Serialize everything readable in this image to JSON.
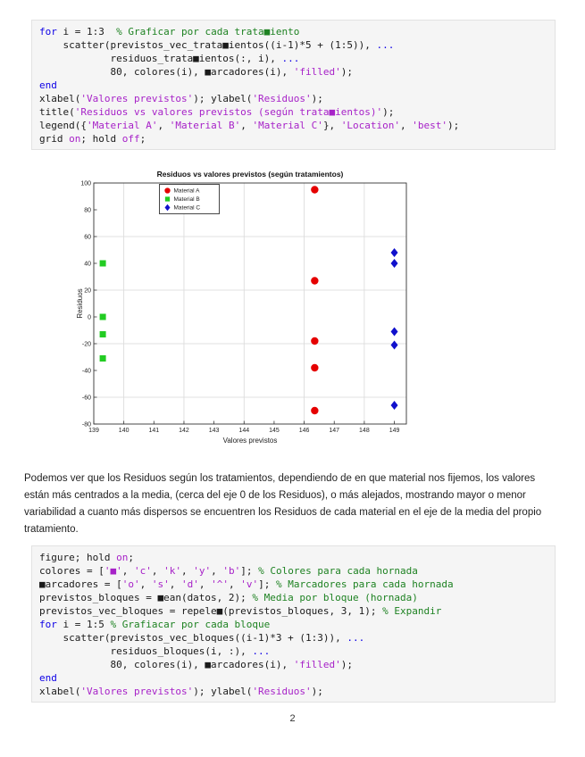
{
  "page": {
    "number": "2"
  },
  "paragraph": "Podemos ver que los Residuos según los tratamientos, dependiendo de en que material nos fijemos, los valores están más centrados a la media, (cerca del eje 0 de los Residuos), o más alejados, mostrando mayor o menor variabilidad a cuanto más dispersos se encuentren los Residuos de cada material en el eje de la media del propio tratamiento.",
  "code_blocks": [
    {
      "language": "matlab",
      "lines": [
        [
          [
            "k",
            "for"
          ],
          [
            "p",
            " i = 1:3  "
          ],
          [
            "c",
            "% Graficar por cada trata■iento"
          ]
        ],
        [
          [
            "p",
            "    scatter(previstos_vec_trata■ientos((i-1)*5 + (1:5)), "
          ],
          [
            "k",
            "..."
          ]
        ],
        [
          [
            "p",
            "            residuos_trata■ientos(:, i), "
          ],
          [
            "k",
            "..."
          ]
        ],
        [
          [
            "p",
            "            80, colores(i), ■arcadores(i), "
          ],
          [
            "s",
            "'filled'"
          ],
          [
            "p",
            ");"
          ]
        ],
        [
          [
            "k",
            "end"
          ]
        ],
        [
          [
            "p",
            "xlabel("
          ],
          [
            "s",
            "'Valores previstos'"
          ],
          [
            "p",
            "); ylabel("
          ],
          [
            "s",
            "'Residuos'"
          ],
          [
            "p",
            ");"
          ]
        ],
        [
          [
            "p",
            "title("
          ],
          [
            "s",
            "'Residuos vs valores previstos (según trata■ientos)'"
          ],
          [
            "p",
            ");"
          ]
        ],
        [
          [
            "p",
            "legend({"
          ],
          [
            "s",
            "'Material A'"
          ],
          [
            "p",
            ", "
          ],
          [
            "s",
            "'Material B'"
          ],
          [
            "p",
            ", "
          ],
          [
            "s",
            "'Material C'"
          ],
          [
            "p",
            "}, "
          ],
          [
            "s",
            "'Location'"
          ],
          [
            "p",
            ", "
          ],
          [
            "s",
            "'best'"
          ],
          [
            "p",
            ");"
          ]
        ],
        [
          [
            "p",
            "grid "
          ],
          [
            "s",
            "on"
          ],
          [
            "p",
            "; hold "
          ],
          [
            "s",
            "off"
          ],
          [
            "p",
            ";"
          ]
        ]
      ]
    },
    {
      "language": "matlab",
      "lines": [
        [
          [
            "p",
            "figure; hold "
          ],
          [
            "s",
            "on"
          ],
          [
            "p",
            ";"
          ]
        ],
        [
          [
            "p",
            "colores = ["
          ],
          [
            "s",
            "'■'"
          ],
          [
            "p",
            ", "
          ],
          [
            "s",
            "'c'"
          ],
          [
            "p",
            ", "
          ],
          [
            "s",
            "'k'"
          ],
          [
            "p",
            ", "
          ],
          [
            "s",
            "'y'"
          ],
          [
            "p",
            ", "
          ],
          [
            "s",
            "'b'"
          ],
          [
            "p",
            "]; "
          ],
          [
            "c",
            "% Colores para cada hornada"
          ]
        ],
        [
          [
            "p",
            "■arcadores = ["
          ],
          [
            "s",
            "'o'"
          ],
          [
            "p",
            ", "
          ],
          [
            "s",
            "'s'"
          ],
          [
            "p",
            ", "
          ],
          [
            "s",
            "'d'"
          ],
          [
            "p",
            ", "
          ],
          [
            "s",
            "'^'"
          ],
          [
            "p",
            ", "
          ],
          [
            "s",
            "'v'"
          ],
          [
            "p",
            "]; "
          ],
          [
            "c",
            "% Marcadores para cada hornada"
          ]
        ],
        [
          [
            "p",
            "previstos_bloques = ■ean(datos, 2); "
          ],
          [
            "c",
            "% Media por bloque (hornada)"
          ]
        ],
        [
          [
            "p",
            "previstos_vec_bloques = repele■(previstos_bloques, 3, 1); "
          ],
          [
            "c",
            "% Expandir"
          ]
        ],
        [
          [
            "k",
            "for"
          ],
          [
            "p",
            " i = 1:5 "
          ],
          [
            "c",
            "% Grafiacar por cada bloque"
          ]
        ],
        [
          [
            "p",
            "    scatter(previstos_vec_bloques((i-1)*3 + (1:3)), "
          ],
          [
            "k",
            "..."
          ]
        ],
        [
          [
            "p",
            "            residuos_bloques(i, :), "
          ],
          [
            "k",
            "..."
          ]
        ],
        [
          [
            "p",
            "            80, colores(i), ■arcadores(i), "
          ],
          [
            "s",
            "'filled'"
          ],
          [
            "p",
            ");"
          ]
        ],
        [
          [
            "k",
            "end"
          ]
        ],
        [
          [
            "p",
            "xlabel("
          ],
          [
            "s",
            "'Valores previstos'"
          ],
          [
            "p",
            "); ylabel("
          ],
          [
            "s",
            "'Residuos'"
          ],
          [
            "p",
            ");"
          ]
        ]
      ]
    }
  ],
  "chart_data": {
    "type": "scatter",
    "title": "Residuos vs valores previstos (según tratamientos)",
    "xlabel": "Valores previstos",
    "ylabel": "Residuos",
    "xlim": [
      139,
      149.4
    ],
    "ylim": [
      -80,
      100
    ],
    "xticks": [
      139,
      140,
      141,
      142,
      143,
      144,
      145,
      146,
      147,
      148,
      149
    ],
    "yticks": [
      100,
      80,
      60,
      40,
      20,
      0,
      -20,
      -40,
      -60,
      -80
    ],
    "grid_x": [
      140,
      142,
      144,
      146,
      148
    ],
    "grid_y": [
      60,
      20,
      -20,
      -60
    ],
    "grid": "on",
    "legend_position": "top-left-inside",
    "series": [
      {
        "name": "Material A",
        "marker": "circle",
        "color": "#e50000",
        "points": [
          [
            146.35,
            95
          ],
          [
            146.35,
            27
          ],
          [
            146.35,
            -18
          ],
          [
            146.35,
            -38
          ],
          [
            146.35,
            -70
          ]
        ]
      },
      {
        "name": "Material B",
        "marker": "square",
        "color": "#22cc22",
        "points": [
          [
            139.3,
            40
          ],
          [
            139.3,
            0
          ],
          [
            139.3,
            -13
          ],
          [
            139.3,
            -31
          ]
        ]
      },
      {
        "name": "Material C",
        "marker": "diamond",
        "color": "#1111cc",
        "points": [
          [
            149,
            48
          ],
          [
            149,
            40
          ],
          [
            149,
            -11
          ],
          [
            149,
            -21
          ],
          [
            149,
            -66
          ]
        ]
      }
    ]
  }
}
